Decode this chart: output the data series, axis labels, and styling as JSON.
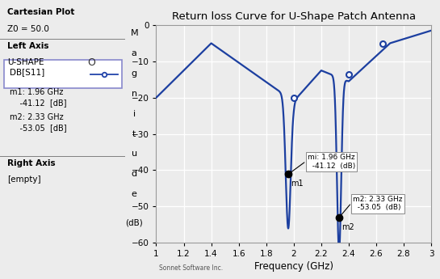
{
  "title": "Return loss Curve for U-Shape Patch Antenna",
  "xlabel": "Frequency (GHz)",
  "xlim": [
    1.0,
    3.0
  ],
  "ylim": [
    -60,
    0
  ],
  "xticks": [
    1.0,
    1.2,
    1.4,
    1.6,
    1.8,
    2.0,
    2.2,
    2.4,
    2.6,
    2.8,
    3.0
  ],
  "yticks": [
    0,
    -10,
    -20,
    -30,
    -40,
    -50,
    -60
  ],
  "line_color": "#1c3fa0",
  "bg_color": "#ececec",
  "grid_color": "#ffffff",
  "m1_freq": 1.96,
  "m1_val": -41.12,
  "m2_freq": 2.33,
  "m2_val": -53.05,
  "open_circle_pts": [
    [
      2.0,
      -20.0
    ],
    [
      2.4,
      -13.5
    ],
    [
      2.65,
      -5.2
    ]
  ],
  "sonnet_text": "Sonnet Software Inc.",
  "panel_title": "Cartesian Plot",
  "panel_z0": "Z0 = 50.0",
  "panel_left_axis": "Left Axis",
  "panel_ushape": "U-SHAPE",
  "panel_dbs11": "DB[S11]",
  "panel_m1_line1": "m1: 1.96 GHz",
  "panel_m1_line2": "    -41.12  [dB]",
  "panel_m2_line1": "m2: 2.33 GHz",
  "panel_m2_line2": "    -53.05  [dB]",
  "panel_right_axis": "Right Axis",
  "panel_empty": "[empty]",
  "ann1_text": "m1: 1.96 GHz\n   -41.12  (dB)",
  "ann2_text": "m2: 2.33 GHz\n   -53.05  (dB)",
  "ylabel_chars": [
    "M",
    "a",
    "g",
    "n",
    "i",
    "t",
    "u",
    "d",
    "e"
  ],
  "ylabel_dB": "(dB)"
}
